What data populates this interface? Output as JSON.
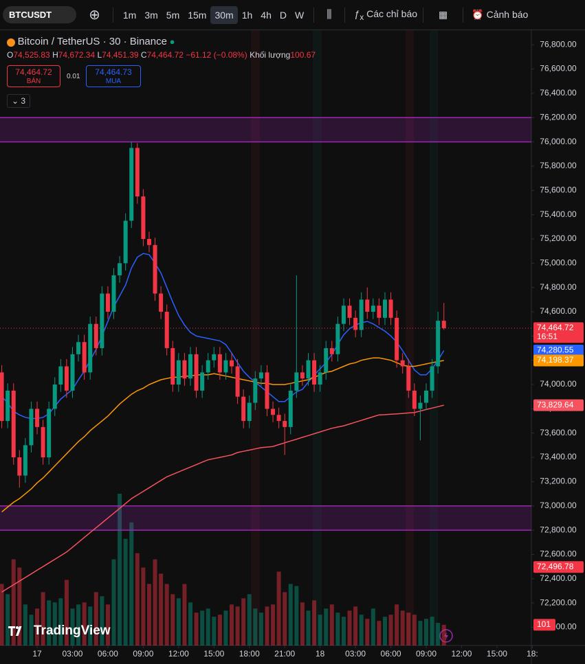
{
  "ui": {
    "symbol": "BTCUSDT",
    "intervals": [
      "1m",
      "3m",
      "5m",
      "15m",
      "30m",
      "1h",
      "4h",
      "D",
      "W"
    ],
    "active_interval": 4,
    "indicators": "Các chỉ báo",
    "alerts": "Cảnh báo",
    "legend": {
      "title": "Bitcoin / TetherUS · 30 · Binance",
      "o_label": "O",
      "open": "74,525.83",
      "h_label": "H",
      "high": "74,672.34",
      "l_label": "L",
      "low": "74,451.39",
      "c_label": "C",
      "close": "74,464.72",
      "change": "−61.12 (−0.08%)",
      "volume_label": "Khối lượng",
      "volume": "100.67"
    },
    "trade": {
      "sell_price": "74,464.72",
      "sell_label": "BÁN",
      "spread": "0.01",
      "buy_price": "74,464.73",
      "buy_label": "MUA"
    },
    "indicator_count": "3",
    "logo": "TradingView"
  },
  "chart_data": {
    "type": "candlestick",
    "x": [
      21,
      21.5,
      22,
      22.5,
      23,
      23.5,
      24,
      24.5,
      25,
      25.5,
      26,
      26.5,
      27,
      27.5,
      28,
      28.5,
      29,
      29.5,
      30,
      30.5,
      31,
      31.5,
      32,
      32.5,
      33,
      33.5,
      34,
      34.5,
      35,
      35.5,
      36,
      36.5,
      37,
      37.5,
      38,
      38.5,
      39,
      39.5,
      40,
      40.5,
      41,
      41.5,
      42,
      42.5,
      43,
      43.5,
      44,
      44.5,
      45,
      45.5,
      46,
      46.5,
      47,
      47.5,
      48,
      48.5,
      49,
      49.5,
      50,
      50.5,
      51,
      51.5,
      52,
      52.5,
      53,
      53.5,
      54,
      54.5,
      55,
      55.5,
      56,
      56.5,
      57,
      57.5,
      58,
      58.5
    ],
    "open": [
      74100,
      73700,
      73950,
      73400,
      73250,
      73500,
      73800,
      73650,
      73400,
      73800,
      74000,
      74150,
      73950,
      74250,
      74350,
      74100,
      74500,
      74300,
      74750,
      74600,
      74900,
      75000,
      75350,
      75950,
      75550,
      75200,
      75150,
      74750,
      74600,
      74300,
      74000,
      74200,
      74050,
      74250,
      73950,
      74100,
      74200,
      74250,
      74100,
      74200,
      74150,
      73900,
      73700,
      73850,
      74050,
      74100,
      73800,
      73750,
      73700,
      73650,
      73950,
      74100,
      74050,
      74200,
      74000,
      74100,
      74300,
      74250,
      74500,
      74650,
      74550,
      74450,
      74700,
      74600,
      74650,
      74550,
      74700,
      74550,
      74200,
      74150,
      73950,
      73800,
      73850,
      73950,
      74150,
      74525.83
    ],
    "high": [
      74160,
      74010,
      74010,
      73460,
      73560,
      73860,
      73860,
      73710,
      73860,
      74060,
      74210,
      74210,
      74310,
      74410,
      74410,
      74560,
      74560,
      74810,
      74810,
      74960,
      75060,
      75410,
      76000,
      75990,
      75610,
      75260,
      75210,
      74810,
      74660,
      74360,
      74260,
      74260,
      74310,
      74310,
      74160,
      74260,
      74310,
      74310,
      74260,
      74260,
      74210,
      73960,
      73910,
      74110,
      74160,
      74160,
      73860,
      73810,
      73760,
      74010,
      74900,
      74160,
      74260,
      74260,
      74160,
      74360,
      74360,
      74560,
      74710,
      74710,
      74610,
      74760,
      74800,
      74710,
      74710,
      74760,
      74760,
      74610,
      74260,
      74210,
      74010,
      73910,
      74010,
      74210,
      74600,
      74672.34
    ],
    "low": [
      73640,
      73640,
      73340,
      73150,
      73190,
      73440,
      73590,
      73340,
      73340,
      73740,
      73940,
      73890,
      73890,
      74190,
      74040,
      74040,
      74240,
      74240,
      74540,
      74540,
      74840,
      74940,
      75290,
      75490,
      75140,
      75090,
      74690,
      74540,
      74240,
      73940,
      73940,
      73990,
      73990,
      73890,
      73890,
      74040,
      74140,
      74040,
      74040,
      74090,
      73840,
      73640,
      73640,
      73790,
      73990,
      73740,
      73690,
      73640,
      73420,
      73590,
      73890,
      73990,
      73990,
      73940,
      73940,
      74040,
      74190,
      74190,
      74440,
      74490,
      74390,
      74390,
      74540,
      74540,
      74490,
      74490,
      74490,
      74140,
      74090,
      73890,
      73740,
      73540,
      73790,
      73890,
      74090,
      74451.39
    ],
    "close": [
      73700,
      73950,
      73400,
      73250,
      73500,
      73800,
      73650,
      73400,
      73800,
      74000,
      74150,
      73950,
      74250,
      74350,
      74100,
      74500,
      74300,
      74750,
      74600,
      74900,
      75000,
      75350,
      75950,
      75550,
      75200,
      75150,
      74750,
      74600,
      74300,
      74000,
      74200,
      74050,
      74250,
      73950,
      74100,
      74200,
      74250,
      74100,
      74200,
      74150,
      73900,
      73700,
      73850,
      74050,
      74100,
      73800,
      73750,
      73700,
      73650,
      73950,
      74100,
      74050,
      74200,
      74000,
      74100,
      74300,
      74250,
      74500,
      74650,
      74550,
      74450,
      74700,
      74600,
      74650,
      74550,
      74700,
      74550,
      74200,
      74150,
      73950,
      73800,
      73850,
      73950,
      74150,
      74525.83,
      74464.72
    ],
    "up_color": "#089981",
    "down_color": "#f23645",
    "series": [
      {
        "color": "#2962ff",
        "values": [
          73900,
          73850,
          73780,
          73750,
          73730,
          73720,
          73720,
          73730,
          73760,
          73820,
          73880,
          73920,
          73960,
          74040,
          74110,
          74200,
          74290,
          74400,
          74520,
          74640,
          74730,
          74820,
          74960,
          75050,
          75080,
          75070,
          75000,
          74920,
          74800,
          74680,
          74570,
          74490,
          74430,
          74400,
          74390,
          74380,
          74370,
          74360,
          74330,
          74260,
          74180,
          74110,
          74060,
          74020,
          73980,
          73940,
          73900,
          73860,
          73860,
          73900,
          73940,
          73960,
          74020,
          74080,
          74130,
          74180,
          74250,
          74330,
          74410,
          74460,
          74490,
          74510,
          74520,
          74500,
          74470,
          74440,
          74400,
          74350,
          74280,
          74200,
          74120,
          74080,
          74080,
          74130,
          74200,
          74280.55
        ]
      },
      {
        "color": "#ff9800",
        "values": [
          72950,
          72990,
          73030,
          73060,
          73100,
          73140,
          73190,
          73230,
          73280,
          73330,
          73380,
          73430,
          73480,
          73530,
          73570,
          73620,
          73660,
          73700,
          73740,
          73790,
          73840,
          73880,
          73920,
          73950,
          73970,
          74000,
          74020,
          74040,
          74050,
          74060,
          74060,
          74070,
          74070,
          74080,
          74080,
          74080,
          74090,
          74080,
          74070,
          74060,
          74050,
          74040,
          74030,
          74020,
          74010,
          74010,
          74000,
          74000,
          74000,
          74010,
          74020,
          74030,
          74040,
          74060,
          74080,
          74100,
          74110,
          74130,
          74150,
          74170,
          74180,
          74200,
          74210,
          74220,
          74220,
          74210,
          74200,
          74180,
          74160,
          74150,
          74150,
          74160,
          74170,
          74180,
          74190,
          74198.37
        ]
      },
      {
        "color": "#f7525f",
        "values": [
          72290,
          72320,
          72350,
          72380,
          72410,
          72440,
          72470,
          72500,
          72530,
          72560,
          72590,
          72620,
          72660,
          72700,
          72740,
          72780,
          72820,
          72860,
          72900,
          72940,
          72980,
          73020,
          73060,
          73090,
          73120,
          73150,
          73180,
          73210,
          73240,
          73260,
          73280,
          73300,
          73320,
          73340,
          73360,
          73380,
          73390,
          73400,
          73410,
          73420,
          73440,
          73450,
          73460,
          73470,
          73480,
          73485,
          73490,
          73505,
          73520,
          73535,
          73550,
          73565,
          73580,
          73595,
          73610,
          73625,
          73640,
          73650,
          73660,
          73675,
          73690,
          73705,
          73720,
          73735,
          73750,
          73752,
          73755,
          73758,
          73762,
          73766,
          73770,
          73782,
          73794,
          73806,
          73818,
          73829.64
        ]
      },
      {
        "kind": "volume",
        "axis": "y2",
        "values": [
          300,
          250,
          420,
          380,
          200,
          150,
          180,
          260,
          220,
          210,
          230,
          320,
          180,
          200,
          210,
          190,
          260,
          240,
          200,
          420,
          740,
          520,
          600,
          450,
          380,
          300,
          420,
          350,
          300,
          250,
          230,
          300,
          210,
          160,
          170,
          180,
          140,
          150,
          170,
          200,
          190,
          230,
          250,
          180,
          160,
          190,
          200,
          360,
          260,
          300,
          290,
          210,
          170,
          220,
          150,
          180,
          200,
          160,
          140,
          170,
          190,
          150,
          130,
          180,
          120,
          140,
          150,
          200,
          170,
          160,
          150,
          120,
          130,
          140,
          110,
          100.67
        ]
      }
    ],
    "xlim": [
      20.85,
      65.92
    ],
    "xticks": [
      {
        "value": 24,
        "label": "17"
      },
      {
        "value": 27,
        "label": "03:00"
      },
      {
        "value": 30,
        "label": "06:00"
      },
      {
        "value": 33,
        "label": "09:00"
      },
      {
        "value": 36,
        "label": "12:00"
      },
      {
        "value": 39,
        "label": "15:00"
      },
      {
        "value": 42,
        "label": "18:00"
      },
      {
        "value": 45,
        "label": "21:00"
      },
      {
        "value": 48,
        "label": "18"
      },
      {
        "value": 51,
        "label": "03:00"
      },
      {
        "value": 54,
        "label": "06:00"
      },
      {
        "value": 57,
        "label": "09:00"
      },
      {
        "value": 60,
        "label": "12:00"
      },
      {
        "value": 63,
        "label": "15:00"
      },
      {
        "value": 66,
        "label": "18:"
      }
    ],
    "ylim": [
      71850,
      76920
    ],
    "yticks": [
      {
        "value": 76800,
        "label": "76,800.00"
      },
      {
        "value": 76600,
        "label": "76,600.00"
      },
      {
        "value": 76400,
        "label": "76,400.00"
      },
      {
        "value": 76200,
        "label": "76,200.00"
      },
      {
        "value": 76000,
        "label": "76,000.00"
      },
      {
        "value": 75800,
        "label": "75,800.00"
      },
      {
        "value": 75600,
        "label": "75,600.00"
      },
      {
        "value": 75400,
        "label": "75,400.00"
      },
      {
        "value": 75200,
        "label": "75,200.00"
      },
      {
        "value": 75000,
        "label": "75,000.00"
      },
      {
        "value": 74800,
        "label": "74,800.00"
      },
      {
        "value": 74600,
        "label": "74,600.00"
      },
      {
        "value": 74400,
        "label": "74,400.00"
      },
      {
        "value": 74200,
        "label": "74,200.00"
      },
      {
        "value": 74000,
        "label": "74,000.00"
      },
      {
        "value": 73800,
        "label": "73,800.00"
      },
      {
        "value": 73600,
        "label": "73,600.00"
      },
      {
        "value": 73400,
        "label": "73,400.00"
      },
      {
        "value": 73200,
        "label": "73,200.00"
      },
      {
        "value": 73000,
        "label": "73,000.00"
      },
      {
        "value": 72800,
        "label": "72,800.00"
      },
      {
        "value": 72600,
        "label": "72,600.00"
      },
      {
        "value": 72400,
        "label": "72,400.00"
      },
      {
        "value": 72200,
        "label": "72,200.00"
      },
      {
        "value": 72000,
        "label": "72,000.00"
      }
    ],
    "y2lim": [
      0,
      3000
    ],
    "zones": [
      {
        "from": 76000,
        "to": 76200,
        "color": "#9c27b0"
      },
      {
        "from": 72800,
        "to": 73000,
        "color": "#9c27b0"
      }
    ],
    "price_tags": [
      {
        "value": 74464.72,
        "label": "74,464.72",
        "countdown": "16:51",
        "color": "#f23645"
      },
      {
        "value": 74280.55,
        "label": "74,280.55",
        "color": "#2962ff"
      },
      {
        "value": 74198.37,
        "label": "74,198.37",
        "color": "#ff9800"
      },
      {
        "value": 73829.64,
        "label": "73,829.64",
        "color": "#f7525f"
      },
      {
        "value": 72496.78,
        "label": "72,496.78",
        "color": "#f23645"
      }
    ],
    "volume_tag": {
      "value": 100.67,
      "label": "101",
      "color": "#f23645"
    },
    "grid": false
  }
}
